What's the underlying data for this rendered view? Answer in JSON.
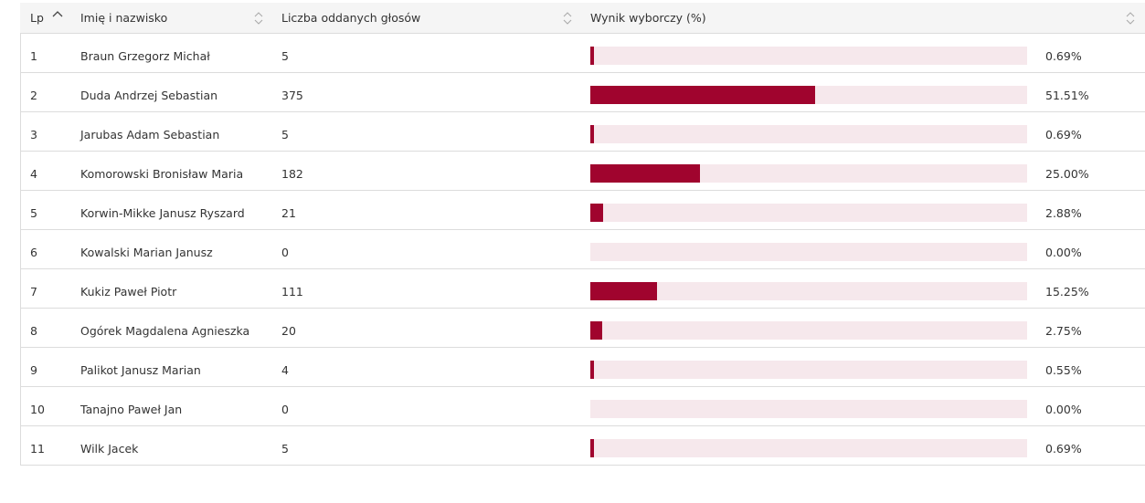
{
  "table": {
    "columns": {
      "lp": "Lp",
      "name": "Imię i nazwisko",
      "votes": "Liczba oddanych głosów",
      "result": "Wynik wyborczy (%)"
    },
    "sort": {
      "column": "lp",
      "direction": "asc"
    },
    "bar_color": "#a0042e",
    "bar_track_color": "#f6e8ec",
    "rows": [
      {
        "lp": "1",
        "name": "Braun Grzegorz Michał",
        "votes": "5",
        "pct": "0.69%",
        "share": 0.0069
      },
      {
        "lp": "2",
        "name": "Duda Andrzej Sebastian",
        "votes": "375",
        "pct": "51.51%",
        "share": 0.5151
      },
      {
        "lp": "3",
        "name": "Jarubas Adam Sebastian",
        "votes": "5",
        "pct": "0.69%",
        "share": 0.0069
      },
      {
        "lp": "4",
        "name": "Komorowski Bronisław Maria",
        "votes": "182",
        "pct": "25.00%",
        "share": 0.25
      },
      {
        "lp": "5",
        "name": "Korwin-Mikke Janusz Ryszard",
        "votes": "21",
        "pct": "2.88%",
        "share": 0.0288
      },
      {
        "lp": "6",
        "name": "Kowalski Marian Janusz",
        "votes": "0",
        "pct": "0.00%",
        "share": 0
      },
      {
        "lp": "7",
        "name": "Kukiz Paweł Piotr",
        "votes": "111",
        "pct": "15.25%",
        "share": 0.1525
      },
      {
        "lp": "8",
        "name": "Ogórek Magdalena Agnieszka",
        "votes": "20",
        "pct": "2.75%",
        "share": 0.0275
      },
      {
        "lp": "9",
        "name": "Palikot Janusz Marian",
        "votes": "4",
        "pct": "0.55%",
        "share": 0.0055
      },
      {
        "lp": "10",
        "name": "Tanajno Paweł Jan",
        "votes": "0",
        "pct": "0.00%",
        "share": 0
      },
      {
        "lp": "11",
        "name": "Wilk Jacek",
        "votes": "5",
        "pct": "0.69%",
        "share": 0.0069
      }
    ]
  }
}
